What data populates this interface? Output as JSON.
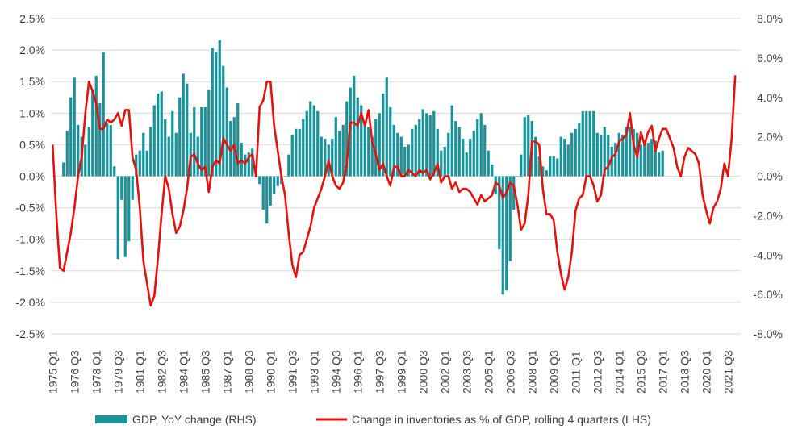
{
  "chart_data": {
    "type": "bar+line",
    "title": "",
    "x_start": "1975 Q1",
    "n_quarters": 190,
    "x_tick_labels": [
      "1975 Q1",
      "1976 Q3",
      "1978 Q1",
      "1979 Q3",
      "1981 Q1",
      "1982 Q3",
      "1984 Q1",
      "1985 Q3",
      "1987 Q1",
      "1988 Q3",
      "1990 Q1",
      "1991 Q3",
      "1993 Q1",
      "1994 Q3",
      "1996 Q1",
      "1997 Q3",
      "1999 Q1",
      "2000 Q3",
      "2002 Q1",
      "2003 Q3",
      "2005 Q1",
      "2006 Q3",
      "2008 Q1",
      "2009 Q3",
      "2011 Q1",
      "2012 Q3",
      "2014 Q1",
      "2015 Q3",
      "2017 Q1",
      "2018 Q3",
      "2020 Q1",
      "2021 Q3"
    ],
    "left_axis": {
      "label": "Change in inventories as % of GDP",
      "ylim": [
        -2.5,
        2.5
      ],
      "ticks": [
        "2.5%",
        "2.0%",
        "1.5%",
        "1.0%",
        "0.5%",
        "0.0%",
        "-0.5%",
        "-1.0%",
        "-1.5%",
        "-2.0%",
        "-2.5%"
      ]
    },
    "right_axis": {
      "label": "GDP, YoY change",
      "ylim": [
        -8.0,
        8.0
      ],
      "ticks": [
        "8.0%",
        "6.0%",
        "4.0%",
        "2.0%",
        "0.0%",
        "-2.0%",
        "-4.0%",
        "-6.0%",
        "-8.0%"
      ]
    },
    "series": [
      {
        "name": "GDP, YoY change (RHS)",
        "type": "bar",
        "axis": "right",
        "color": "#17949b",
        "start_index": 3,
        "values": [
          0.7,
          2.3,
          4.0,
          5.0,
          2.6,
          2.0,
          1.6,
          2.5,
          4.4,
          5.1,
          3.7,
          6.3,
          2.7,
          2.6,
          0.5,
          -4.2,
          -1.2,
          -4.1,
          -3.3,
          -1.2,
          1.1,
          1.3,
          2.2,
          1.3,
          2.5,
          3.6,
          4.2,
          4.3,
          2.9,
          2.0,
          3.3,
          2.2,
          4.0,
          5.2,
          4.7,
          2.2,
          3.5,
          2.0,
          3.5,
          3.5,
          4.4,
          6.5,
          6.3,
          6.9,
          5.6,
          4.5,
          2.8,
          3.0,
          3.7,
          1.7,
          1.1,
          1.2,
          1.4,
          0.0,
          -0.4,
          -1.7,
          -2.4,
          -1.5,
          -0.9,
          -0.5,
          -0.4,
          0.0,
          1.1,
          2.1,
          2.4,
          2.4,
          2.9,
          3.3,
          3.8,
          3.6,
          3.3,
          2.0,
          1.9,
          1.6,
          1.9,
          3.0,
          2.3,
          2.6,
          3.8,
          4.5,
          5.1,
          4.0,
          3.6,
          2.6,
          2.5,
          2.0,
          2.9,
          3.2,
          4.2,
          5.0,
          3.5,
          2.6,
          2.2,
          2.0,
          1.5,
          1.6,
          2.4,
          2.6,
          2.9,
          3.4,
          3.2,
          3.1,
          3.3,
          2.4,
          1.3,
          1.5,
          2.2,
          3.6,
          2.8,
          2.5,
          1.9,
          1.2,
          1.9,
          2.3,
          2.9,
          3.2,
          2.6,
          1.3,
          0.6,
          -0.9,
          -3.7,
          -6.0,
          -5.8,
          -4.3,
          -1.7,
          0.0,
          1.1,
          3.0,
          3.1,
          2.8,
          2.0,
          1.0,
          0.5,
          0.3,
          1.0,
          1.0,
          0.9,
          2.0,
          1.9,
          1.6,
          2.2,
          2.4,
          2.7,
          3.3,
          3.3,
          3.3,
          3.3,
          2.2,
          2.1,
          2.5,
          2.1,
          1.5,
          1.7,
          2.2,
          2.1,
          2.5,
          2.5,
          2.4,
          2.2,
          1.6,
          1.6,
          1.7,
          1.9,
          1.8,
          1.2,
          1.3
        ]
      },
      {
        "name": "Change in inventories as % of GDP, rolling 4 quarters (LHS)",
        "type": "line",
        "axis": "left",
        "color": "#e3120b",
        "start_index": 0,
        "values": [
          0.5,
          -0.6,
          -1.45,
          -1.5,
          -1.2,
          -0.9,
          -0.5,
          0.0,
          0.3,
          1.0,
          1.5,
          1.35,
          1.15,
          0.75,
          0.75,
          0.9,
          0.85,
          0.9,
          1.0,
          0.8,
          1.05,
          1.05,
          0.3,
          0.1,
          -0.5,
          -1.35,
          -1.7,
          -2.05,
          -1.9,
          -1.3,
          -0.6,
          0.0,
          -0.2,
          -0.6,
          -0.9,
          -0.8,
          -0.55,
          -0.2,
          0.3,
          0.35,
          0.2,
          0.1,
          0.15,
          -0.25,
          0.15,
          0.25,
          0.2,
          0.6,
          0.5,
          0.4,
          0.5,
          0.2,
          0.25,
          0.2,
          0.3,
          0.35,
          0.0,
          1.1,
          1.2,
          1.5,
          1.5,
          0.8,
          0.4,
          0.0,
          -0.3,
          -0.9,
          -1.4,
          -1.6,
          -1.25,
          -1.2,
          -1.0,
          -0.8,
          -0.5,
          -0.35,
          -0.2,
          0.0,
          0.25,
          0.0,
          -0.15,
          -0.2,
          -0.1,
          0.2,
          0.85,
          0.85,
          0.8,
          1.0,
          0.8,
          1.05,
          0.55,
          0.35,
          0.1,
          0.2,
          0.0,
          -0.15,
          0.15,
          0.15,
          0.0,
          0.0,
          0.1,
          0.05,
          0.0,
          0.1,
          0.05,
          0.1,
          -0.05,
          0.05,
          0.2,
          -0.1,
          0.0,
          0.0,
          -0.2,
          -0.1,
          -0.25,
          -0.2,
          -0.2,
          -0.25,
          -0.35,
          -0.45,
          -0.3,
          -0.4,
          -0.35,
          -0.3,
          -0.1,
          -0.15,
          -0.35,
          -0.25,
          -0.1,
          -0.15,
          -0.45,
          -0.85,
          -0.75,
          -0.3,
          0.55,
          0.55,
          0.5,
          -0.2,
          -0.6,
          -0.6,
          -0.7,
          -1.2,
          -1.55,
          -1.8,
          -1.6,
          -1.2,
          -0.55,
          -0.35,
          -0.3,
          0.0,
          0.0,
          -0.15,
          -0.4,
          -0.3,
          0.1,
          0.15,
          0.3,
          0.35,
          0.55,
          0.6,
          0.65,
          1.0,
          0.5,
          0.3,
          0.7,
          0.5,
          0.7,
          0.8,
          0.4,
          0.6,
          0.75,
          0.75,
          0.6,
          0.45,
          0.15,
          0.0,
          0.3,
          0.45,
          0.4,
          0.35,
          0.2,
          -0.3,
          -0.55,
          -0.75,
          -0.5,
          -0.4,
          -0.2,
          0.2,
          0.0,
          0.6,
          1.6
        ]
      }
    ],
    "legend": {
      "placement": "bottom",
      "items": [
        {
          "label": "GDP, YoY change (RHS)",
          "color": "#17949b",
          "kind": "bar"
        },
        {
          "label": "Change in inventories as % of GDP, rolling 4 quarters (LHS)",
          "color": "#e3120b",
          "kind": "line"
        }
      ]
    },
    "grid": true
  }
}
